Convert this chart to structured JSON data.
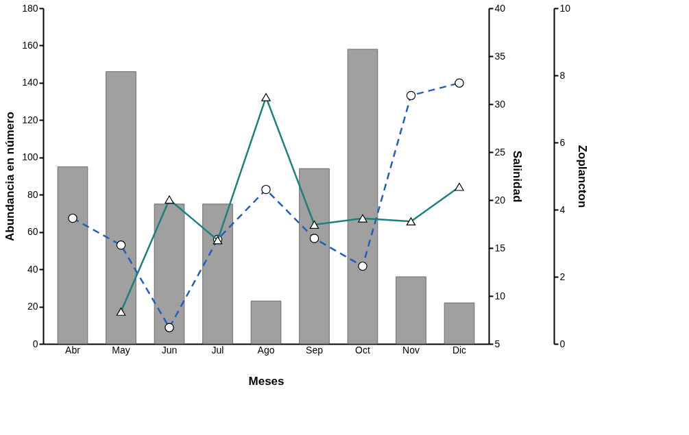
{
  "chart_data": {
    "type": "bar",
    "xlabel": "Meses",
    "ylabel": "Abundancia en número",
    "y2label": "Salinidad",
    "y3label": "Zoplancton",
    "categories": [
      "Abr",
      "May",
      "Jun",
      "Jul",
      "Ago",
      "Sep",
      "Oct",
      "Nov",
      "Dic"
    ],
    "series": [
      {
        "color": "#a0a0a0",
        "values": [
          95,
          146,
          75,
          75,
          23,
          94,
          158,
          36,
          22
        ]
      },
      {
        "type": "line",
        "axis": "y2",
        "color": "#1f5fbf",
        "line_style": "dashed",
        "marker": "circle",
        "values": [
          18.1,
          15.3,
          6.7,
          15.9,
          21.1,
          16.0,
          13.1,
          30.9,
          32.2
        ]
      },
      {
        "type": "line",
        "axis": "y3",
        "color": "#1a8080",
        "line_style": "solid",
        "marker": "triangle",
        "values": [
          null,
          0.96,
          4.3,
          3.09,
          7.35,
          3.55,
          3.74,
          3.65,
          4.68
        ]
      }
    ],
    "ylim": [
      0,
      180
    ],
    "yticks": [
      0,
      20,
      40,
      60,
      80,
      100,
      120,
      140,
      160,
      180
    ],
    "y2lim": [
      5,
      40
    ],
    "y2ticks": [
      5,
      10,
      15,
      20,
      25,
      30,
      35,
      40
    ],
    "y3lim": [
      0,
      10
    ],
    "y3ticks": [
      0,
      2,
      4,
      6,
      8,
      10
    ],
    "grid": false
  }
}
